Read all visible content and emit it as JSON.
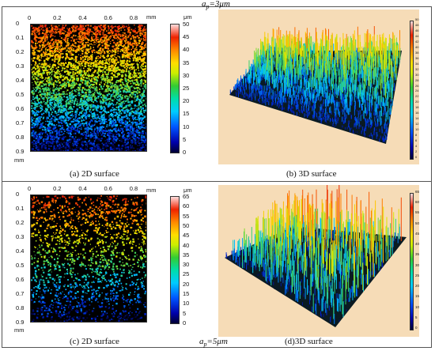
{
  "top_panel": {
    "title_main": "a",
    "title_sub": "p",
    "title_value": "=3μm",
    "left_caption": "(a) 2D surface",
    "right_caption": "(b) 3D surface",
    "x_ticks": [
      "0",
      "0.2",
      "0.4",
      "0.6",
      "0.8"
    ],
    "x_unit": "mm",
    "y_ticks": [
      "0",
      "0.1",
      "0.2",
      "0.3",
      "0.4",
      "0.5",
      "0.6",
      "0.7",
      "0.8",
      "0.9"
    ],
    "y_unit": "mm",
    "cbar_unit": "μm",
    "cbar_ticks": [
      "50",
      "45",
      "40",
      "35",
      "30",
      "25",
      "20",
      "15",
      "10",
      "5",
      "0"
    ],
    "cbar3d_ticks": [
      "50",
      "48",
      "46",
      "44",
      "42",
      "40",
      "38",
      "36",
      "34",
      "32",
      "30",
      "28",
      "26",
      "24",
      "22",
      "20",
      "18",
      "16",
      "14",
      "12",
      "10",
      "8",
      "6",
      "4",
      "2",
      "0"
    ],
    "colors": {
      "background_3d": "#f6dcb7"
    }
  },
  "bottom_panel": {
    "title_main": "a",
    "title_sub": "p",
    "title_value": "=5μm",
    "left_caption": "(c) 2D surface",
    "right_caption": "(d)3D surface",
    "x_ticks": [
      "0",
      "0.2",
      "0.4",
      "0.6",
      "0.8"
    ],
    "x_unit": "mm",
    "y_ticks": [
      "0",
      "0.1",
      "0.2",
      "0.3",
      "0.4",
      "0.5",
      "0.6",
      "0.7",
      "0.8",
      "0.9"
    ],
    "y_unit": "mm",
    "cbar_unit": "μm",
    "cbar_ticks": [
      "65",
      "60",
      "55",
      "50",
      "45",
      "40",
      "35",
      "30",
      "25",
      "20",
      "15",
      "10",
      "5",
      "0"
    ],
    "cbar3d_ticks": [
      "65",
      "60",
      "55",
      "50",
      "45",
      "40",
      "35",
      "30",
      "25",
      "20",
      "15",
      "10",
      "5",
      "0"
    ],
    "colors": {
      "background_3d": "#f6dcb7"
    }
  }
}
